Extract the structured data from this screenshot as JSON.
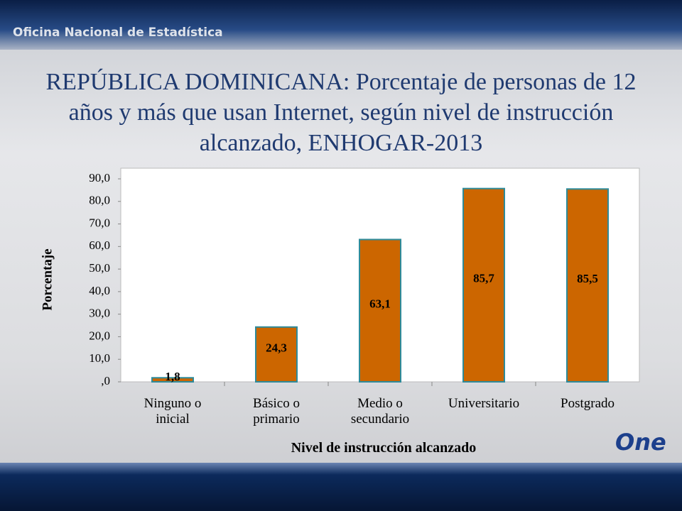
{
  "header": "Oficina Nacional de Estadística",
  "logo": "One",
  "chart_data": {
    "type": "bar",
    "title": "REPÚBLICA DOMINICANA: Porcentaje de personas de 12 años y más que usan Internet, según nivel de instrucción alcanzado, ENHOGAR-2013",
    "categories": [
      "Ninguno o inicial",
      "Básico o primario",
      "Medio o secundario",
      "Universitario",
      "Postgrado"
    ],
    "values": [
      1.8,
      24.3,
      63.1,
      85.7,
      85.5
    ],
    "value_labels": [
      "1,8",
      "24,3",
      "63,1",
      "85,7",
      "85,5"
    ],
    "color": "#cc6600",
    "edge_color": "#2e8b9a",
    "x_label": "Nivel de instrucción alcanzado",
    "y_label": "Porcentaje",
    "ylim": [
      0,
      90
    ],
    "yticks": [
      {
        "value": 0,
        "label": ",0"
      },
      {
        "value": 10,
        "label": "10,0"
      },
      {
        "value": 20,
        "label": "20,0"
      },
      {
        "value": 30,
        "label": "30,0"
      },
      {
        "value": 40,
        "label": "40,0"
      },
      {
        "value": 50,
        "label": "50,0"
      },
      {
        "value": 60,
        "label": "60,0"
      },
      {
        "value": 70,
        "label": "70,0"
      },
      {
        "value": 80,
        "label": "80,0"
      },
      {
        "value": 90,
        "label": "90,0"
      }
    ],
    "grid": false
  }
}
